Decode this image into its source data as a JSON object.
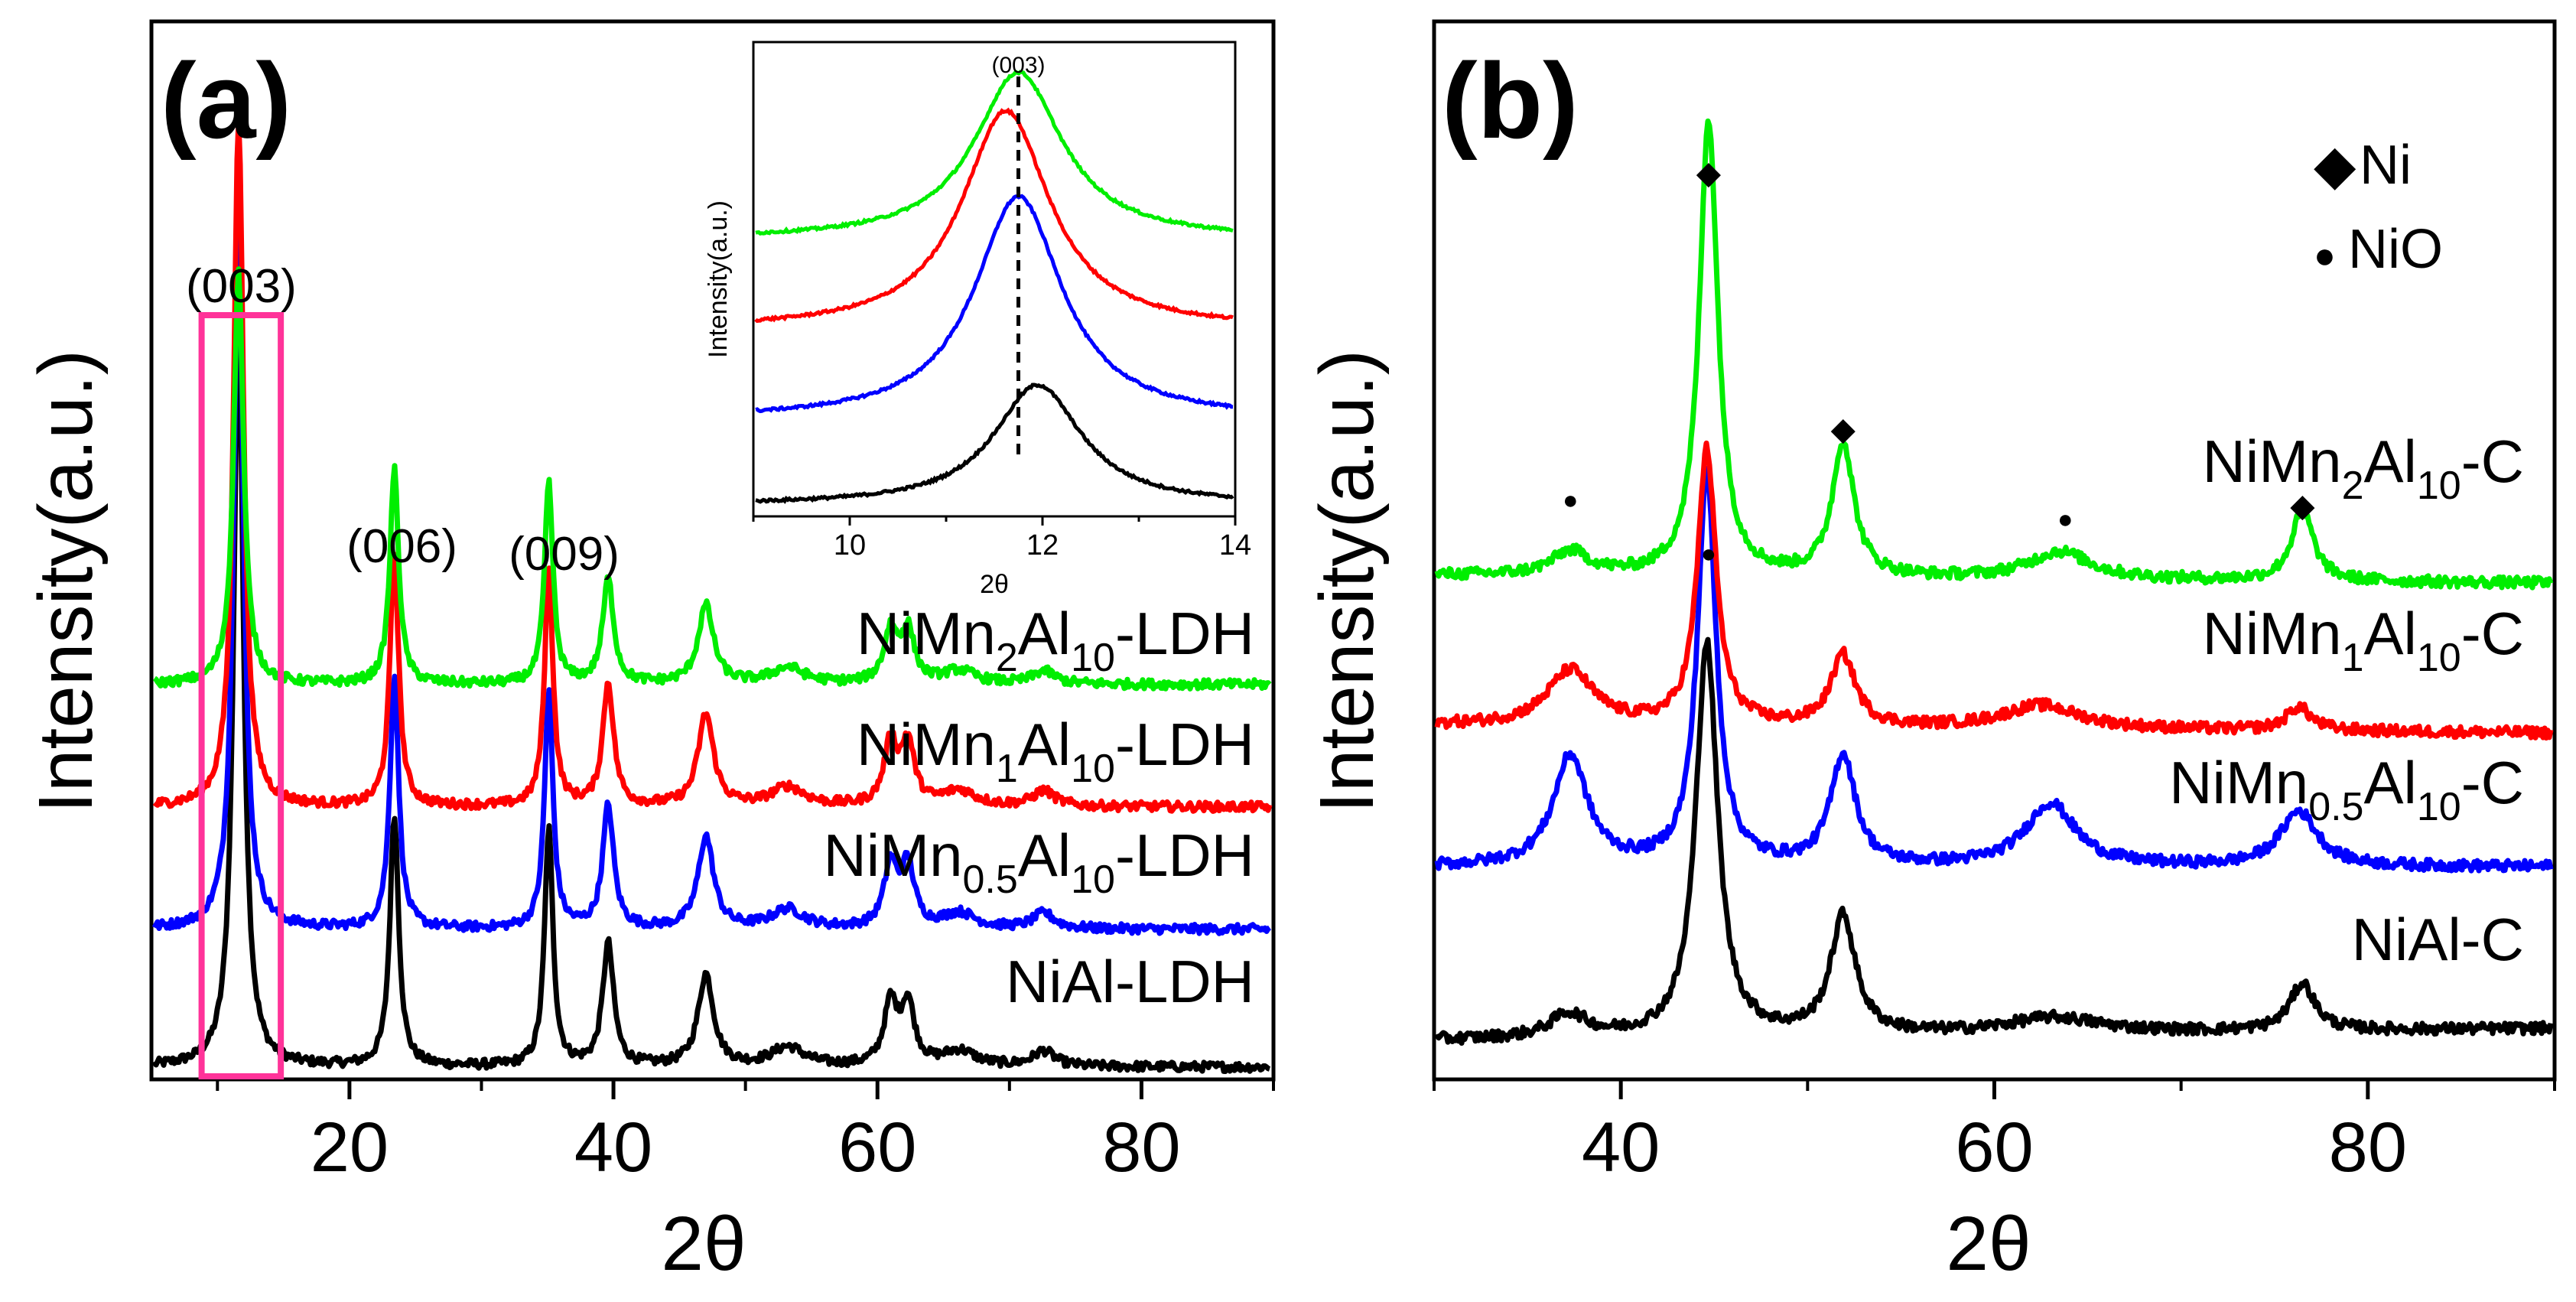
{
  "chart_data": [
    {
      "panel": "(a)",
      "type": "line",
      "xlabel": "2θ",
      "ylabel": "Intensity(a.u.)",
      "xlim": [
        5,
        90
      ],
      "xticks": [
        20,
        40,
        60,
        80
      ],
      "yticks": [],
      "series": [
        {
          "name": "NiAl-LDH",
          "label_main": "NiAl-LDH",
          "label_sub": "",
          "label_mid": "",
          "label_sub2": "",
          "label_end": "",
          "color": "#000000",
          "offset": 0,
          "peak_scale": 1.0
        },
        {
          "name": "NiMn0.5Al10-LDH",
          "label_main": "NiMn",
          "label_sub": "0.5",
          "label_mid": "Al",
          "label_sub2": "10",
          "label_end": "-LDH",
          "color": "#0000ff",
          "offset": 0.18,
          "peak_scale": 0.95
        },
        {
          "name": "NiMn1Al10-LDH",
          "label_main": "NiMn",
          "label_sub": "1",
          "label_mid": "Al",
          "label_sub2": "10",
          "label_end": "-LDH",
          "color": "#ff0000",
          "offset": 0.34,
          "peak_scale": 0.92
        },
        {
          "name": "NiMn2Al10-LDH",
          "label_main": "NiMn",
          "label_sub": "2",
          "label_mid": "Al",
          "label_sub2": "10",
          "label_end": "-LDH",
          "color": "#00ee00",
          "offset": 0.5,
          "peak_scale": 0.55
        }
      ],
      "peaks": [
        {
          "x": 11.6,
          "height": 0.98,
          "width": 0.45
        },
        {
          "x": 23.4,
          "height": 0.33,
          "width": 0.4
        },
        {
          "x": 35.1,
          "height": 0.31,
          "width": 0.38
        },
        {
          "x": 39.6,
          "height": 0.16,
          "width": 0.5
        },
        {
          "x": 47.0,
          "height": 0.12,
          "width": 0.7
        },
        {
          "x": 53.2,
          "height": 0.025,
          "width": 1.5
        },
        {
          "x": 61.0,
          "height": 0.08,
          "width": 0.6
        },
        {
          "x": 62.3,
          "height": 0.08,
          "width": 0.6
        },
        {
          "x": 66.2,
          "height": 0.02,
          "width": 1.5
        },
        {
          "x": 72.6,
          "height": 0.02,
          "width": 1.0
        }
      ],
      "peak_annotations": [
        "(003)",
        "(006)",
        "(009)"
      ],
      "highlight_box": {
        "x_range": [
          8.8,
          14.8
        ],
        "label": "(003)",
        "color": "#ff3399"
      },
      "inset": {
        "xlabel": "2θ",
        "ylabel": "Intensity(a.u.)",
        "xlim": [
          9,
          14
        ],
        "xticks": [
          10,
          12,
          14
        ],
        "peak_label": "(003)",
        "reference_line_x": 11.75,
        "series": [
          {
            "color": "#000000",
            "center": 11.95,
            "baseline": 0.0,
            "height": 0.28
          },
          {
            "color": "#0000ff",
            "center": 11.75,
            "baseline": 0.2,
            "height": 0.52
          },
          {
            "color": "#ff0000",
            "center": 11.62,
            "baseline": 0.41,
            "height": 0.51
          },
          {
            "color": "#00ee00",
            "center": 11.75,
            "baseline": 0.62,
            "height": 0.39
          }
        ]
      }
    },
    {
      "panel": "(b)",
      "type": "line",
      "xlabel": "2θ",
      "ylabel": "Intensity(a.u.)",
      "xlim": [
        30,
        90
      ],
      "xticks": [
        40,
        60,
        80
      ],
      "yticks": [],
      "legend": [
        {
          "marker": "◆",
          "label": "Ni"
        },
        {
          "marker": "●",
          "label": "NiO"
        }
      ],
      "series": [
        {
          "name": "NiAl-C",
          "label_main": "NiAl-C",
          "label_sub": "",
          "label_mid": "",
          "label_sub2": "",
          "label_end": "",
          "color": "#000000",
          "offset": 0,
          "peaks": [
            {
              "x": 37.2,
              "height": 0.03,
              "width": 1.2
            },
            {
              "x": 44.6,
              "height": 0.5,
              "width": 0.7
            },
            {
              "x": 51.9,
              "height": 0.15,
              "width": 0.8
            },
            {
              "x": 63.2,
              "height": 0.02,
              "width": 3.0
            },
            {
              "x": 76.5,
              "height": 0.06,
              "width": 0.8
            }
          ]
        },
        {
          "name": "NiMn0.5Al10-C",
          "label_main": "NiMn",
          "label_sub": "0.5",
          "label_mid": "Al",
          "label_sub2": "10",
          "label_end": "-C",
          "color": "#0000ff",
          "offset": 0.22,
          "peaks": [
            {
              "x": 37.3,
              "height": 0.14,
              "width": 1.1
            },
            {
              "x": 44.6,
              "height": 0.5,
              "width": 0.6
            },
            {
              "x": 51.9,
              "height": 0.14,
              "width": 0.8
            },
            {
              "x": 63.0,
              "height": 0.08,
              "width": 1.6
            },
            {
              "x": 76.3,
              "height": 0.07,
              "width": 1.2
            }
          ]
        },
        {
          "name": "NiMn1Al10-C",
          "label_main": "NiMn",
          "label_sub": "1",
          "label_mid": "Al",
          "label_sub2": "10",
          "label_end": "-C",
          "color": "#ff0000",
          "offset": 0.4,
          "peaks": [
            {
              "x": 37.3,
              "height": 0.07,
              "width": 1.5
            },
            {
              "x": 44.6,
              "height": 0.35,
              "width": 0.6
            },
            {
              "x": 51.9,
              "height": 0.09,
              "width": 0.8
            },
            {
              "x": 62.5,
              "height": 0.03,
              "width": 2.5
            },
            {
              "x": 76.3,
              "height": 0.03,
              "width": 0.8
            }
          ]
        },
        {
          "name": "NiMn2Al10-C",
          "label_main": "NiMn",
          "label_sub": "2",
          "label_mid": "Al",
          "label_sub2": "10",
          "label_end": "-C",
          "color": "#00ee00",
          "offset": 0.59,
          "peaks": [
            {
              "x": 37.3,
              "height": 0.03,
              "width": 1.2
            },
            {
              "x": 44.7,
              "height": 0.58,
              "width": 0.6
            },
            {
              "x": 51.9,
              "height": 0.17,
              "width": 0.7
            },
            {
              "x": 63.5,
              "height": 0.035,
              "width": 2.0
            },
            {
              "x": 76.5,
              "height": 0.09,
              "width": 0.7
            }
          ]
        }
      ],
      "phase_markers": [
        {
          "x": 37.3,
          "phase": "NiO"
        },
        {
          "x": 44.7,
          "phase": "Ni"
        },
        {
          "x": 51.9,
          "phase": "Ni"
        },
        {
          "x": 63.8,
          "phase": "NiO"
        },
        {
          "x": 76.5,
          "phase": "Ni"
        },
        {
          "x": 44.7,
          "phase": "NiO"
        }
      ]
    }
  ]
}
